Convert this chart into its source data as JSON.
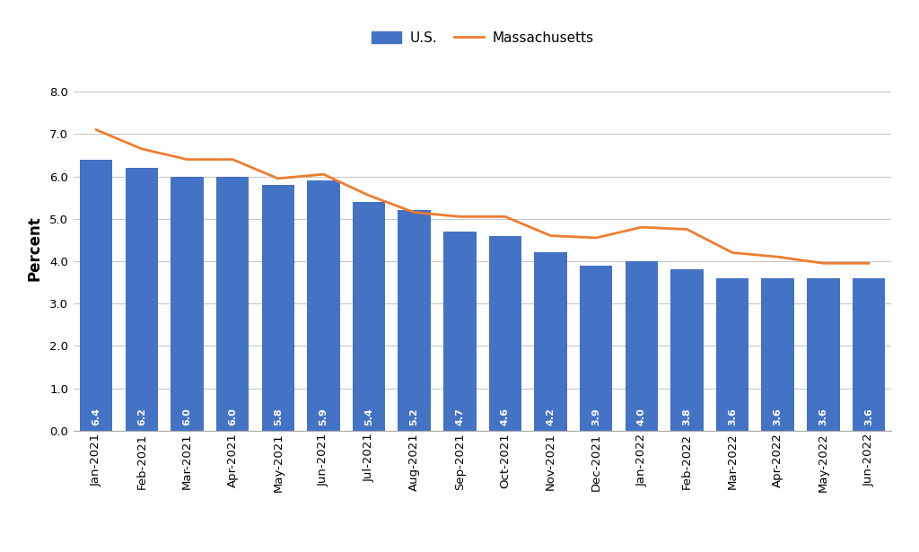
{
  "categories": [
    "Jan-2021",
    "Feb-2021",
    "Mar-2021",
    "Apr-2021",
    "May-2021",
    "Jun-2021",
    "Jul-2021",
    "Aug-2021",
    "Sep-2021",
    "Oct-2021",
    "Nov-2021",
    "Dec-2021",
    "Jan-2022",
    "Feb-2022",
    "Mar-2022",
    "Apr-2022",
    "May-2022",
    "Jun-2022"
  ],
  "us_values": [
    6.4,
    6.2,
    6.0,
    6.0,
    5.8,
    5.9,
    5.4,
    5.2,
    4.7,
    4.6,
    4.2,
    3.9,
    4.0,
    3.8,
    3.6,
    3.6,
    3.6,
    3.6
  ],
  "ma_values": [
    7.1,
    6.65,
    6.4,
    6.4,
    5.95,
    6.05,
    5.55,
    5.15,
    5.05,
    5.05,
    4.6,
    4.55,
    4.8,
    4.75,
    4.2,
    4.1,
    3.95,
    3.95
  ],
  "bar_color": "#4472C4",
  "line_color": "#ED7D31",
  "label_color": "#FFFFFF",
  "ylabel": "Percent",
  "ylim_min": 0.0,
  "ylim_max": 8.6,
  "yticks": [
    0.0,
    1.0,
    2.0,
    3.0,
    4.0,
    5.0,
    6.0,
    7.0,
    8.0
  ],
  "legend_us": "U.S.",
  "legend_ma": "Massachusetts",
  "background_color": "#FFFFFF",
  "grid_color": "#C8C8C8",
  "label_fontsize": 8.0,
  "axis_fontsize": 12,
  "legend_fontsize": 11,
  "tick_fontsize": 9.5
}
